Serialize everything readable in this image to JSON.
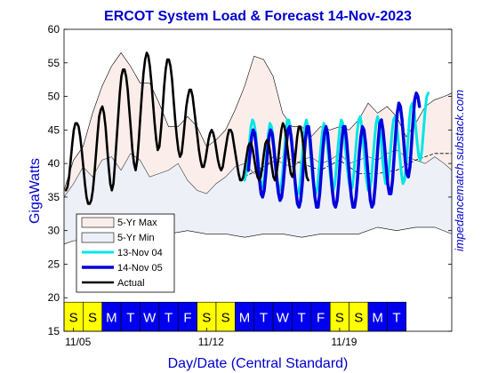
{
  "chart_data": {
    "type": "line",
    "title": "ERCOT System Load & Forecast 14-Nov-2023",
    "ylabel": "GigaWatts",
    "xlabel": "Day/Date (Central Standard)",
    "watermark": "impedancematch.substack.com",
    "ylim": [
      15,
      60
    ],
    "yticks": [
      15,
      20,
      25,
      30,
      35,
      40,
      45,
      50,
      55,
      60
    ],
    "xlim_days": [
      4.5,
      24.9
    ],
    "xtick_labels": [
      {
        "label": "11/05",
        "day": 5
      },
      {
        "label": "11/12",
        "day": 12
      },
      {
        "label": "11/19",
        "day": 19
      }
    ],
    "day_strip": {
      "labels": [
        "S",
        "S",
        "M",
        "T",
        "W",
        "T",
        "F",
        "S",
        "S",
        "M",
        "T",
        "W",
        "T",
        "F",
        "S",
        "S",
        "M",
        "T"
      ],
      "weekend_color": "#ffff00",
      "weekday_color": "#0000ee",
      "first_day": 4.5
    },
    "legend": {
      "position": "lower-left",
      "entries": [
        "5-Yr Max",
        "5-Yr Min",
        "13-Nov 04",
        "14-Nov 05",
        "Actual"
      ]
    },
    "series": [
      {
        "name": "5-Yr Max",
        "color": "#d9a8a0",
        "fill": "#fbeeea",
        "x": [
          4.5,
          5.0,
          5.5,
          6.0,
          6.5,
          7.0,
          7.5,
          8.0,
          8.5,
          9.0,
          9.5,
          10.0,
          10.5,
          11.0,
          11.5,
          12.0,
          12.5,
          13.0,
          13.5,
          14.0,
          14.5,
          15.0,
          15.5,
          16.0,
          16.5,
          17.0,
          17.5,
          18.0,
          18.5,
          19.0,
          19.5,
          20.0,
          20.5,
          21.0,
          21.5,
          22.0,
          22.5,
          23.0,
          23.5,
          24.0,
          24.5,
          24.9
        ],
        "y": [
          36.0,
          40.5,
          42.5,
          47.5,
          51.5,
          54.5,
          56.5,
          54.5,
          52.0,
          52.0,
          49.0,
          45.5,
          45.5,
          47.0,
          45.5,
          42.5,
          43.5,
          45.0,
          48.0,
          51.5,
          56.0,
          55.5,
          53.0,
          47.5,
          45.5,
          45.5,
          44.0,
          45.5,
          45.0,
          45.5,
          45.0,
          46.5,
          49.0,
          47.5,
          48.5,
          47.0,
          44.0,
          46.0,
          48.5,
          49.5,
          50.0,
          50.5
        ]
      },
      {
        "name": "5-Yr Min",
        "color": "#b0b0c0",
        "fill": "#eef0f8",
        "x": [
          4.5,
          5.0,
          6.0,
          7.0,
          8.0,
          9.0,
          10.0,
          11.0,
          12.0,
          13.0,
          14.0,
          15.0,
          16.0,
          17.0,
          18.0,
          19.0,
          20.0,
          21.0,
          22.0,
          23.0,
          24.0,
          24.9
        ],
        "y": [
          28.0,
          28.5,
          28.5,
          29.0,
          29.5,
          29.5,
          29.5,
          30.0,
          29.5,
          29.5,
          29.0,
          29.5,
          29.5,
          29.0,
          29.5,
          29.5,
          29.5,
          30.5,
          30.0,
          30.5,
          30.5,
          29.5
        ]
      },
      {
        "name": "Actual",
        "color": "#000000",
        "hourly_start_day": 4.6,
        "values": [
          36.0,
          36.5,
          38.0,
          40.5,
          43.0,
          45.0,
          46.0,
          46.0,
          45.5,
          44.0,
          42.0,
          39.5,
          37.0,
          35.0,
          34.0,
          34.0,
          34.5,
          36.0,
          38.5,
          41.5,
          44.5,
          47.0,
          48.0,
          48.5,
          47.5,
          45.5,
          42.5,
          39.5,
          37.0,
          36.0,
          37.0,
          40.0,
          43.5,
          47.0,
          50.5,
          53.0,
          54.0,
          54.0,
          53.0,
          51.0,
          48.0,
          45.0,
          42.0,
          40.0,
          39.0,
          40.5,
          43.5,
          47.0,
          50.5,
          53.5,
          55.5,
          56.5,
          56.0,
          54.5,
          52.0,
          49.0,
          46.0,
          43.5,
          42.0,
          42.5,
          45.0,
          48.0,
          51.5,
          54.0,
          55.5,
          55.5,
          54.5,
          52.5,
          49.5,
          46.5,
          44.0,
          42.0,
          41.0,
          41.5,
          43.5,
          46.0,
          48.5,
          50.0,
          51.0,
          51.0,
          50.0,
          48.0,
          46.0,
          44.0,
          42.0,
          40.5,
          39.5,
          39.5,
          40.5,
          42.0,
          43.5,
          44.5,
          45.0,
          44.5,
          43.5,
          42.0,
          40.5,
          39.5,
          39.0,
          39.5,
          41.0,
          42.5,
          44.0,
          45.0,
          45.0,
          44.5,
          43.0,
          41.5,
          40.0,
          38.5,
          37.5,
          37.5,
          38.0,
          39.5,
          41.0,
          42.5,
          43.0,
          43.0,
          42.0,
          40.5,
          39.0,
          38.0,
          37.5,
          38.0,
          39.5,
          41.5,
          43.0,
          43.5,
          43.0,
          41.5,
          39.5,
          38.0,
          37.5,
          38.5,
          40.5,
          43.0,
          45.0,
          46.0,
          45.5,
          44.0,
          42.0,
          40.0,
          38.5,
          38.0,
          39.0,
          41.5,
          44.0,
          45.5,
          45.5,
          44.5,
          42.5,
          40.0,
          38.0,
          37.5
        ]
      },
      {
        "name": "13-Nov 04",
        "color": "#00e5e5",
        "hourly_start_day": 14.0,
        "values": [
          37.5,
          38.5,
          40.5,
          43.0,
          45.5,
          46.5,
          46.0,
          44.5,
          42.0,
          39.5,
          37.5,
          36.5,
          37.0,
          39.0,
          42.0,
          44.5,
          46.0,
          45.5,
          44.0,
          41.5,
          39.0,
          37.0,
          36.0,
          36.5,
          38.5,
          41.5,
          44.5,
          46.5,
          46.5,
          45.0,
          42.5,
          39.5,
          37.0,
          35.5,
          35.5,
          37.0,
          40.0,
          43.0,
          45.5,
          46.5,
          45.5,
          43.5,
          40.5,
          38.0,
          36.0,
          35.5,
          36.5,
          39.0,
          42.0,
          44.5,
          46.0,
          45.5,
          43.5,
          41.0,
          38.5,
          36.5,
          36.0,
          37.0,
          39.5,
          42.5,
          45.0,
          46.5,
          46.0,
          44.0,
          41.5,
          39.0,
          37.0,
          36.0,
          36.5,
          38.5,
          41.5,
          44.5,
          46.5,
          47.0,
          45.5,
          43.0,
          40.0,
          37.5,
          36.0,
          36.0,
          37.5,
          40.5,
          43.5,
          46.0,
          47.0,
          46.0,
          44.0,
          41.0,
          38.5,
          37.0,
          37.0,
          38.5,
          41.5,
          44.5,
          46.5,
          47.0,
          46.0,
          43.5,
          41.0,
          38.5,
          37.0,
          37.5,
          39.5,
          43.0,
          46.5,
          48.5,
          49.0,
          48.0,
          45.5,
          43.0,
          41.0,
          40.5,
          42.0,
          45.0,
          48.0,
          50.0,
          50.5
        ]
      },
      {
        "name": "14-Nov 05",
        "color": "#0000dd",
        "hourly_start_day": 14.2,
        "values": [
          39.0,
          41.5,
          44.0,
          45.0,
          44.5,
          42.5,
          40.0,
          37.5,
          35.5,
          35.0,
          36.0,
          38.5,
          41.5,
          44.0,
          45.0,
          44.5,
          42.5,
          40.0,
          37.5,
          35.5,
          34.5,
          35.0,
          37.0,
          40.0,
          43.0,
          45.0,
          45.5,
          44.0,
          41.5,
          38.5,
          36.0,
          34.0,
          33.5,
          34.5,
          37.0,
          40.5,
          43.5,
          45.5,
          45.5,
          43.5,
          40.5,
          37.5,
          35.0,
          33.5,
          33.5,
          35.5,
          38.5,
          42.0,
          44.5,
          45.5,
          44.5,
          42.0,
          39.0,
          36.0,
          34.0,
          33.5,
          34.5,
          37.0,
          40.5,
          43.5,
          45.5,
          45.5,
          43.5,
          40.5,
          37.5,
          35.0,
          33.5,
          33.5,
          35.0,
          38.0,
          41.5,
          44.0,
          45.5,
          45.0,
          43.0,
          40.0,
          37.0,
          34.5,
          33.5,
          34.0,
          36.5,
          40.0,
          43.5,
          46.0,
          46.5,
          45.0,
          42.5,
          39.5,
          37.0,
          35.5,
          35.5,
          37.5,
          41.0,
          44.5,
          47.5,
          49.0,
          48.5,
          46.5,
          43.5,
          40.5,
          38.5,
          38.0,
          39.5,
          43.0,
          46.5,
          49.5,
          50.5,
          50.0,
          48.5
        ]
      },
      {
        "name": "Day-ahead (dashed)",
        "color": "#000000",
        "dashed": true,
        "x": [
          14.0,
          15.0,
          16.0,
          17.0,
          18.0,
          19.0,
          20.0,
          21.0,
          22.0,
          23.0,
          24.0,
          24.9
        ],
        "y": [
          38.0,
          39.5,
          41.0,
          40.0,
          39.0,
          40.5,
          38.5,
          38.5,
          39.0,
          40.5,
          41.5,
          41.5
        ]
      },
      {
        "name": "Thin grey",
        "color": "#555555",
        "x": [
          4.5,
          5.0,
          5.5,
          6.0,
          6.5,
          7.0,
          7.5,
          8.0,
          8.5,
          9.0,
          9.5,
          10.0,
          10.5,
          11.0,
          11.5,
          12.0,
          12.5,
          13.0,
          13.5,
          14.0,
          14.5,
          15.0,
          15.5,
          16.0,
          16.5,
          17.0,
          17.5,
          18.0,
          18.5,
          19.0,
          19.5,
          20.0,
          20.5,
          21.0,
          21.5,
          22.0,
          22.5,
          23.0,
          23.5,
          24.0,
          24.5,
          24.9
        ],
        "y": [
          35.0,
          37.0,
          39.5,
          38.0,
          40.5,
          41.0,
          39.0,
          41.5,
          40.5,
          38.0,
          38.5,
          39.0,
          40.0,
          37.5,
          36.0,
          35.5,
          37.0,
          38.0,
          39.5,
          40.0,
          38.5,
          39.0,
          41.0,
          40.0,
          39.5,
          40.5,
          41.0,
          40.0,
          40.5,
          41.5,
          40.0,
          40.5,
          41.0,
          40.5,
          41.5,
          42.0,
          41.0,
          40.5,
          40.0,
          41.0,
          40.0,
          39.0
        ]
      }
    ]
  }
}
